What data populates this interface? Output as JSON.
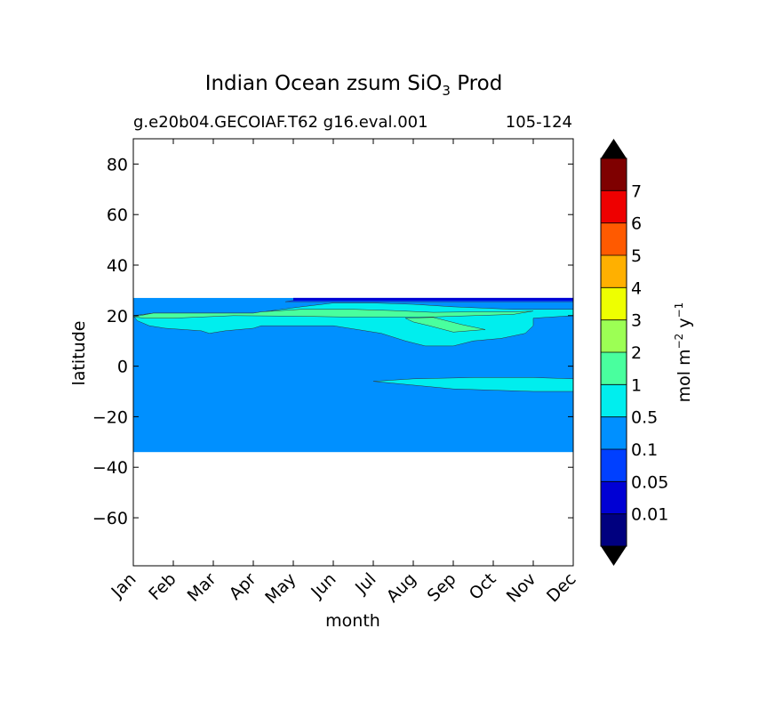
{
  "chart_data": {
    "type": "contour",
    "title": "Indian Ocean zsum SiO",
    "title_subscript": "3",
    "title_suffix": "Prod",
    "subtitle_left": "g.e20b04.GECOIAF.T62 g16.eval.001",
    "subtitle_right": "105-124",
    "xlabel": "month",
    "ylabel": "latitude",
    "x_ticks": [
      "Jan",
      "Feb",
      "Mar",
      "Apr",
      "May",
      "Jun",
      "Jul",
      "Aug",
      "Sep",
      "Oct",
      "Nov",
      "Dec"
    ],
    "y_ticks": [
      80,
      60,
      40,
      20,
      0,
      -20,
      -40,
      -60
    ],
    "y_tick_labels": [
      "80",
      "60",
      "40",
      "20",
      "0",
      "−20",
      "−40",
      "−60"
    ],
    "ylim": [
      -79,
      90
    ],
    "xlim": [
      0,
      11
    ],
    "data_lat_range": [
      -34,
      27
    ],
    "colorbar": {
      "label_main": "mol m",
      "label_exp1": "−2",
      "label_mid": "y",
      "label_exp2": "−1",
      "levels": [
        "0.01",
        "0.05",
        "0.1",
        "0.5",
        "1",
        "2",
        "3",
        "4",
        "5",
        "6",
        "7"
      ],
      "colors": [
        "#00007f",
        "#0000d4",
        "#0040ff",
        "#0090ff",
        "#00eeee",
        "#49ff9e",
        "#9cff54",
        "#eeff00",
        "#ffb000",
        "#ff5a00",
        "#ee0000",
        "#7f0000"
      ],
      "extend": "both"
    },
    "regions": [
      {
        "level": "0.1-0.5",
        "color": "#0090ff",
        "lat": [
          -34,
          27
        ],
        "month": [
          0,
          11
        ]
      },
      {
        "level": "0.01-0.05",
        "color": "#0000d4",
        "lat": [
          26,
          27
        ],
        "month": [
          4,
          11
        ]
      },
      {
        "level": "0.05-0.1",
        "color": "#0040ff",
        "lat": [
          25.5,
          26.5
        ],
        "month": [
          3.8,
          11
        ]
      },
      {
        "level": "0.5-1",
        "color": "#00eeee",
        "lat": [
          7,
          25
        ],
        "month": [
          0,
          11
        ]
      },
      {
        "level": "0.5-1",
        "color": "#00eeee",
        "lat": [
          -10,
          -5
        ],
        "month": [
          6,
          11
        ]
      },
      {
        "level": "1-2",
        "color": "#49ff9e",
        "lat": [
          13,
          22
        ],
        "month": [
          0,
          8.8
        ]
      }
    ]
  }
}
